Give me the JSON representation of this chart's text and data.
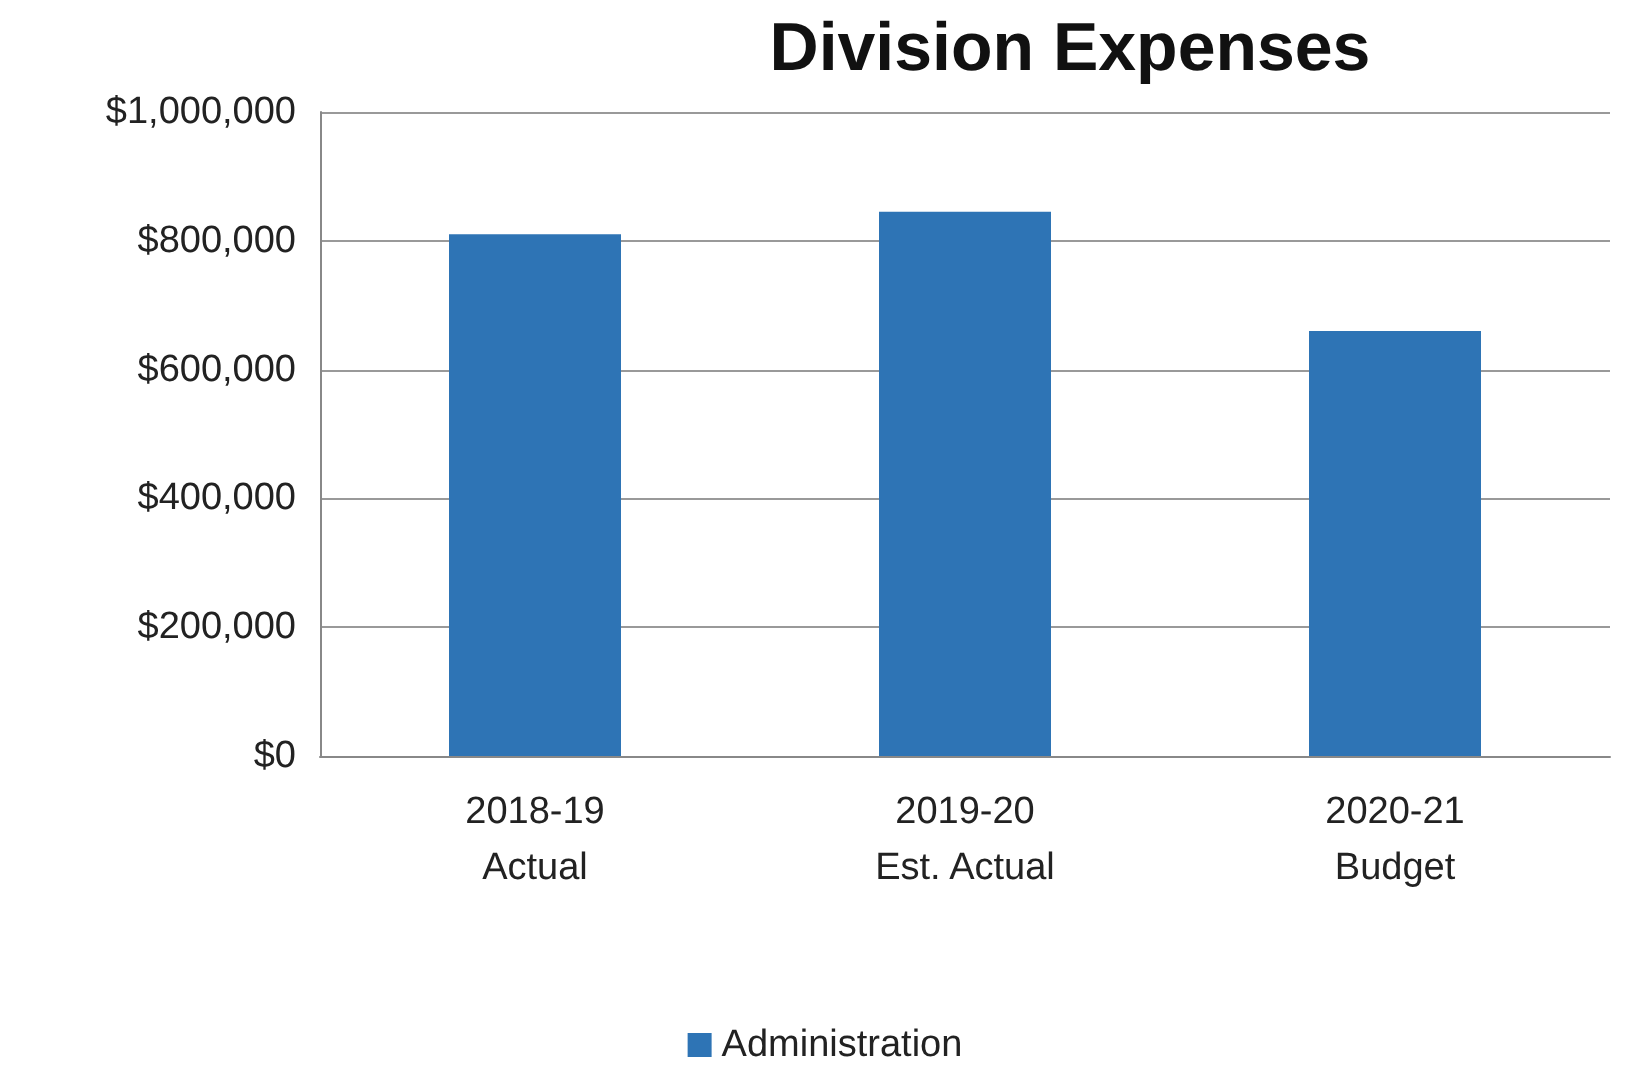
{
  "chart_data": {
    "type": "bar",
    "title": "Division Expenses",
    "categories": [
      "2018-19\nActual",
      "2019-20\nEst. Actual",
      "2020-21\nBudget"
    ],
    "series": [
      {
        "name": "Administration",
        "color": "#2e74b5",
        "values": [
          810000,
          845000,
          660000
        ]
      }
    ],
    "ylim": [
      0,
      1000000
    ],
    "yticks": [
      {
        "value": 0,
        "label": "$0"
      },
      {
        "value": 200000,
        "label": "$200,000"
      },
      {
        "value": 400000,
        "label": "$400,000"
      },
      {
        "value": 600000,
        "label": "$600,000"
      },
      {
        "value": 800000,
        "label": "$800,000"
      },
      {
        "value": 1000000,
        "label": "$1,000,000"
      }
    ],
    "grid": "y",
    "legend": "bottom"
  }
}
